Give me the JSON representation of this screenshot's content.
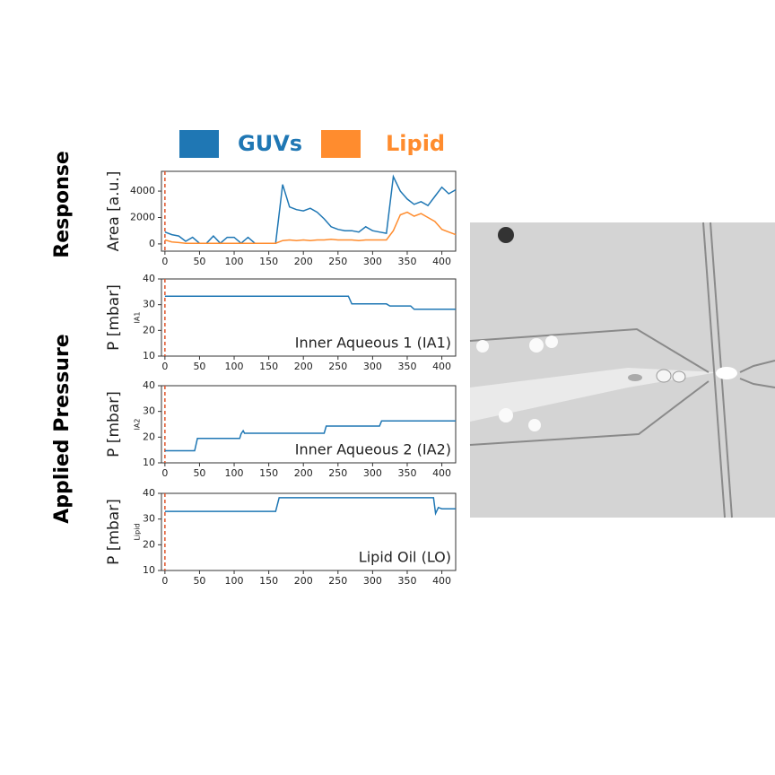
{
  "side_labels": [
    "Response",
    "Applied Pressure"
  ],
  "chart_data": [
    {
      "type": "line",
      "ylabel": "Area [a.u.]",
      "marker_x": 0,
      "x": [
        0,
        10,
        20,
        30,
        40,
        50,
        60,
        70,
        80,
        90,
        100,
        110,
        120,
        130,
        140,
        150,
        160,
        170,
        180,
        190,
        200,
        210,
        220,
        230,
        240,
        250,
        260,
        270,
        280,
        290,
        300,
        310,
        320,
        330,
        340,
        350,
        360,
        370,
        380,
        390,
        400,
        410,
        420
      ],
      "series": [
        {
          "name": "GUVs",
          "color": "#1f77b4",
          "values": [
            900,
            700,
            600,
            200,
            500,
            50,
            50,
            600,
            50,
            500,
            500,
            50,
            500,
            50,
            50,
            50,
            50,
            4500,
            2800,
            2600,
            2500,
            2700,
            2400,
            1900,
            1300,
            1100,
            1000,
            1000,
            900,
            1300,
            1000,
            900,
            800,
            5100,
            4000,
            3400,
            3000,
            3200,
            2900,
            3600,
            4300,
            3800,
            4100
          ]
        },
        {
          "name": "Lipid",
          "color": "#ff8c2e",
          "values": [
            300,
            150,
            100,
            50,
            50,
            50,
            50,
            50,
            50,
            50,
            50,
            50,
            50,
            50,
            50,
            50,
            50,
            250,
            300,
            250,
            300,
            250,
            300,
            300,
            350,
            300,
            300,
            300,
            250,
            300,
            300,
            300,
            300,
            1000,
            2200,
            2400,
            2100,
            2300,
            2000,
            1700,
            1100,
            900,
            700
          ]
        }
      ],
      "xlim": [
        -5,
        420
      ],
      "xticks": [
        0,
        50,
        100,
        150,
        200,
        250,
        300,
        350,
        400
      ],
      "ylim": [
        -550,
        5500
      ],
      "yticks": [
        0,
        2000,
        4000
      ]
    },
    {
      "type": "line",
      "ylabel": "P [mbar]",
      "channel_label": "IA1",
      "annotation": "Inner Aqueous 1 (IA1)",
      "marker_x": 0,
      "x": [
        0,
        265,
        270,
        320,
        325,
        355,
        360,
        420
      ],
      "series": [
        {
          "color": "#1f77b4",
          "values": [
            33.3,
            33.3,
            30.3,
            30.3,
            29.5,
            29.5,
            28.2,
            28.2
          ]
        }
      ],
      "xlim": [
        -5,
        420
      ],
      "xticks": [
        0,
        50,
        100,
        150,
        200,
        250,
        300,
        350,
        400
      ],
      "ylim": [
        10,
        40
      ],
      "yticks": [
        10,
        20,
        30,
        40
      ]
    },
    {
      "type": "line",
      "ylabel": "P [mbar]",
      "channel_label": "IA2",
      "annotation": "Inner Aqueous 2 (IA2)",
      "marker_x": 0,
      "x": [
        0,
        43,
        47,
        108,
        110,
        113,
        115,
        230,
        233,
        310,
        313,
        420
      ],
      "series": [
        {
          "color": "#1f77b4",
          "values": [
            14.7,
            14.7,
            19.5,
            19.5,
            21.3,
            22.5,
            21.5,
            21.5,
            24.3,
            24.3,
            26.3,
            26.3
          ]
        }
      ],
      "xlim": [
        -5,
        420
      ],
      "xticks": [
        0,
        50,
        100,
        150,
        200,
        250,
        300,
        350,
        400
      ],
      "ylim": [
        10,
        40
      ],
      "yticks": [
        10,
        20,
        30,
        40
      ]
    },
    {
      "type": "line",
      "ylabel": "P [mbar]",
      "channel_label": "Lipid",
      "annotation": "Lipid Oil (LO)",
      "marker_x": 0,
      "x": [
        0,
        160,
        165,
        388,
        391,
        395,
        400,
        420
      ],
      "series": [
        {
          "color": "#1f77b4",
          "values": [
            33,
            33,
            38.3,
            38.3,
            32.2,
            34.5,
            34,
            34
          ]
        }
      ],
      "xlim": [
        -5,
        420
      ],
      "xticks": [
        0,
        50,
        100,
        150,
        200,
        250,
        300,
        350,
        400
      ],
      "ylim": [
        10,
        40
      ],
      "yticks": [
        10,
        20,
        30,
        40
      ]
    }
  ]
}
